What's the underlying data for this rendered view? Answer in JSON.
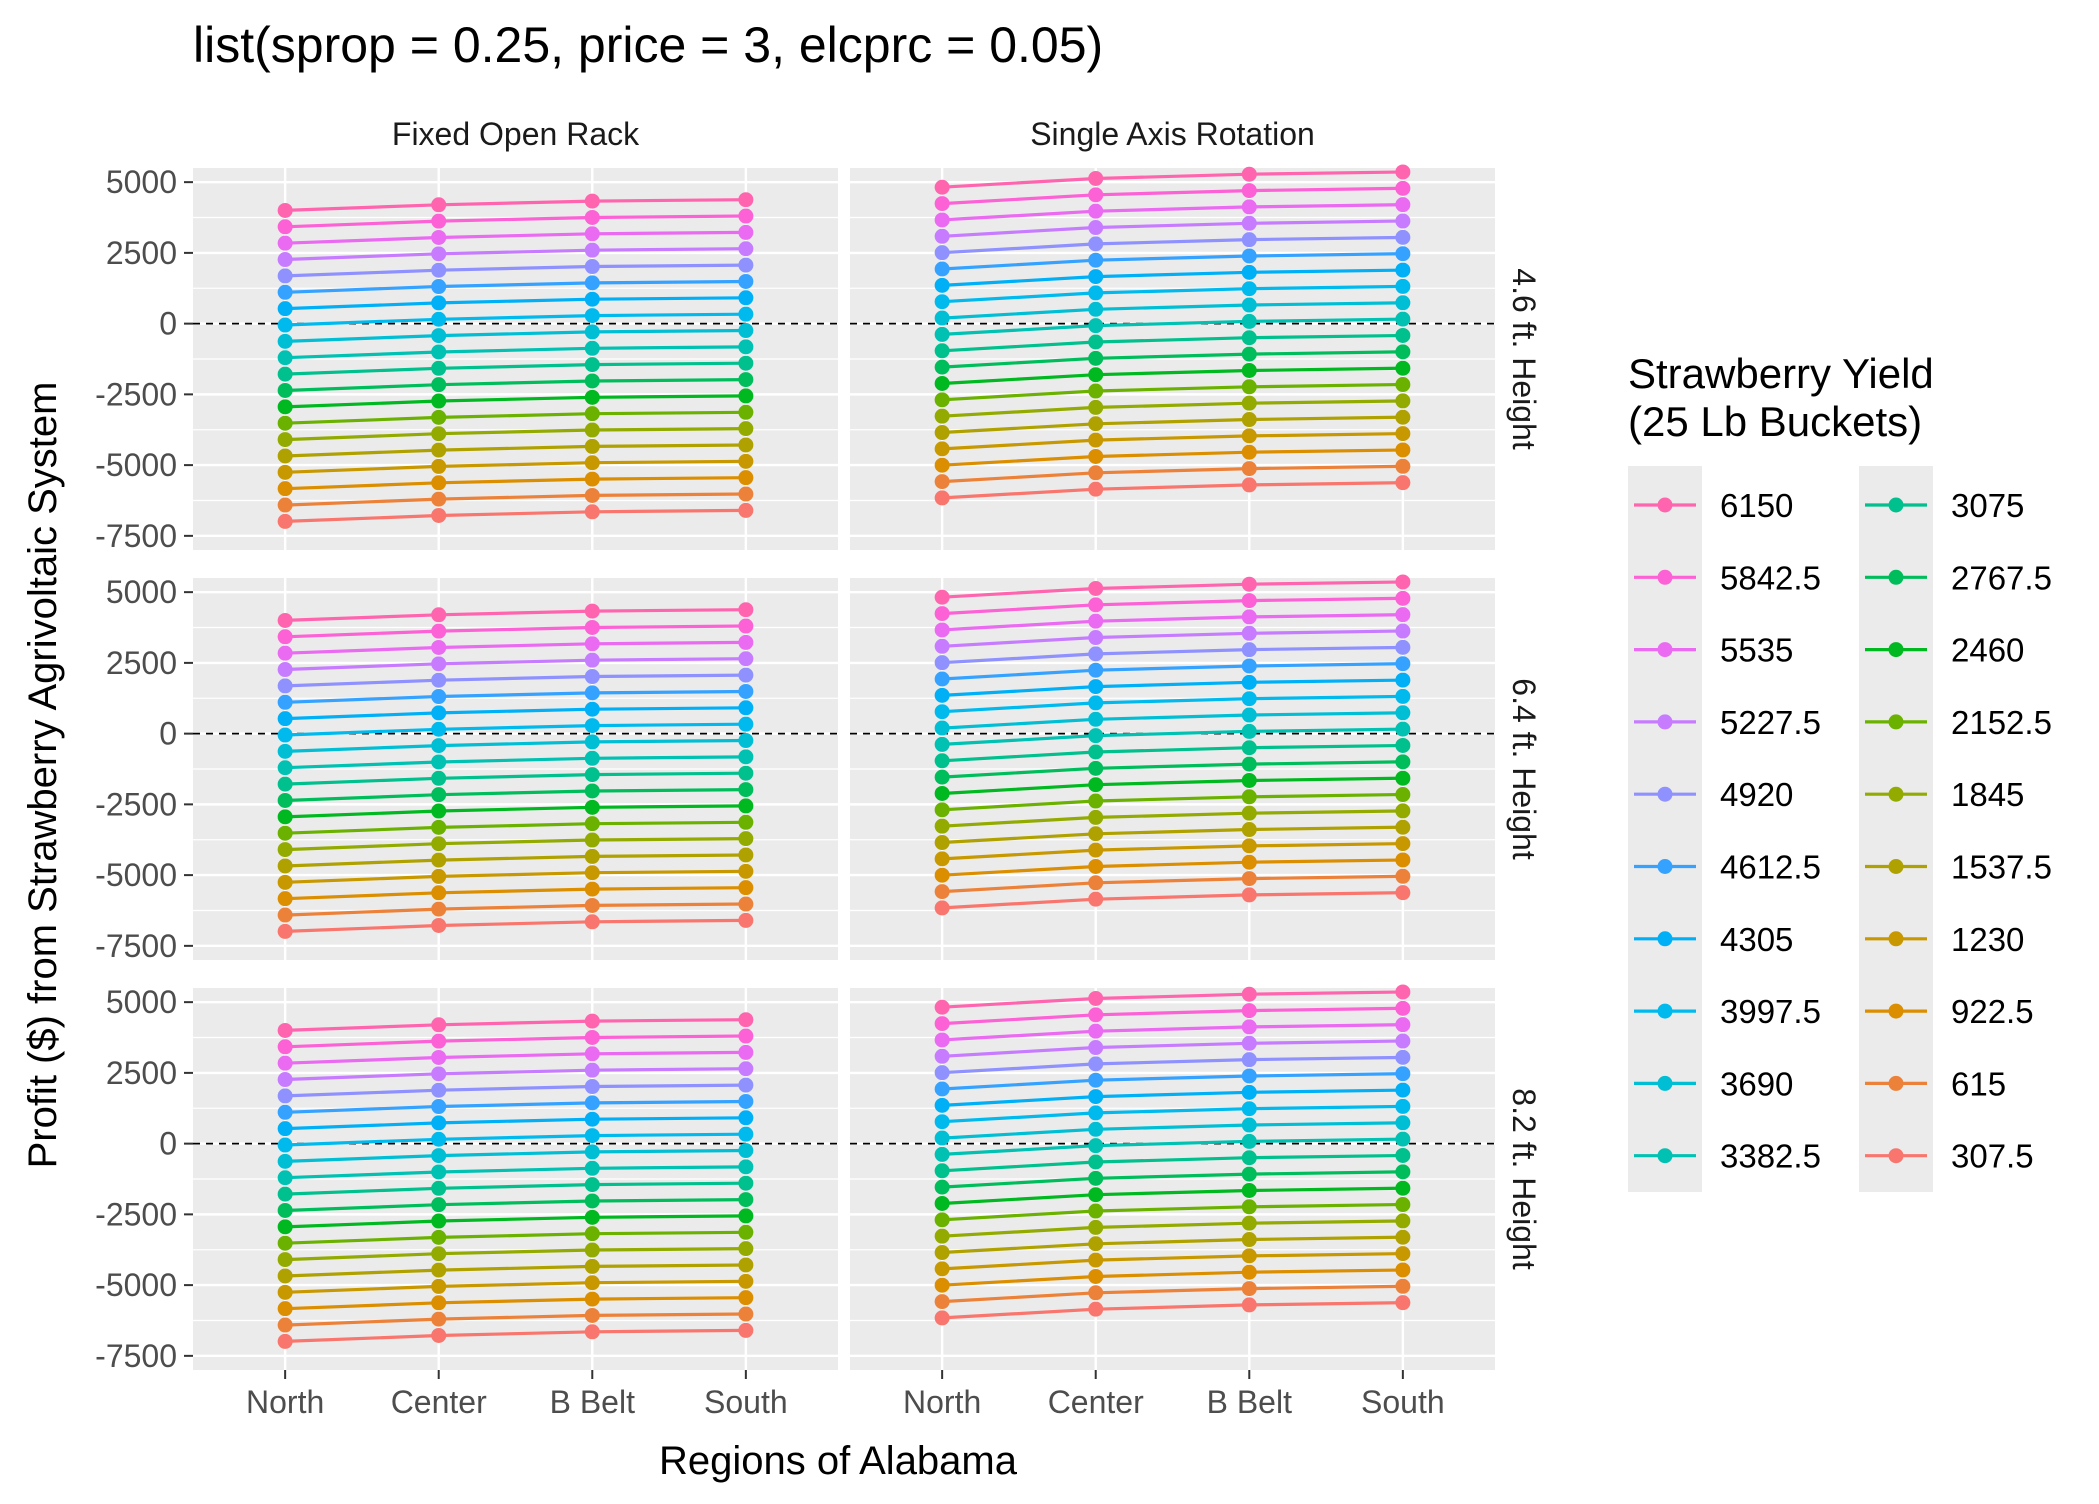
{
  "chart_data": {
    "type": "line",
    "title": "list(sprop = 0.25, price = 3, elcprc = 0.05)",
    "xlabel": "Regions of Alabama",
    "ylabel": "Profit ($) from Strawberry Agrivoltaic System",
    "categories": [
      "North",
      "Center",
      "B Belt",
      "South"
    ],
    "ylim": [
      -7500,
      5000
    ],
    "yticks": [
      -7500,
      -5000,
      -2500,
      0,
      2500,
      5000
    ],
    "ytick_labels": [
      "-7500",
      "-5000",
      "-2500",
      "0",
      "2500",
      "5000"
    ],
    "reference_line": {
      "y": 0,
      "style": "dashed"
    },
    "grid": true,
    "facet_columns": [
      "Fixed Open Rack",
      "Single Axis Rotation"
    ],
    "facet_rows": [
      "4.6 ft. Height",
      "6.4 ft. Height",
      "8.2 ft. Height"
    ],
    "legend": {
      "title": "Strawberry Yield\n (25 Lb Buckets)",
      "position": "right",
      "entries": [
        "6150",
        "5842.5",
        "5535",
        "5227.5",
        "4920",
        "4612.5",
        "4305",
        "3997.5",
        "3690",
        "3382.5",
        "3075",
        "2767.5",
        "2460",
        "2152.5",
        "1845",
        "1537.5",
        "1230",
        "922.5",
        "615",
        "307.5"
      ],
      "colors": [
        "#F8766D",
        "#EC8239",
        "#DB8E00",
        "#C79800",
        "#AFA100",
        "#93AA00",
        "#6BB100",
        "#00B81F",
        "#00BD5C",
        "#00C08D",
        "#00C1B2",
        "#00BFD4",
        "#00BAEE",
        "#00B0F6",
        "#35A2FF",
        "#8F91FF",
        "#C77CFF",
        "#EA6AF1",
        "#FC61D5",
        "#FF65AE"
      ]
    },
    "series": [
      {
        "panel": "Fixed Open Rack",
        "yield": "6150",
        "values": [
          4000,
          4200,
          4330,
          4380
        ]
      },
      {
        "panel": "Fixed Open Rack",
        "yield": "307.5",
        "values": [
          -6990,
          -6780,
          -6650,
          -6600
        ]
      },
      {
        "panel": "Single Axis Rotation",
        "yield": "6150",
        "values": [
          4820,
          5130,
          5280,
          5360
        ]
      },
      {
        "panel": "Single Axis Rotation",
        "yield": "307.5",
        "values": [
          -6160,
          -5850,
          -5700,
          -5620
        ]
      }
    ]
  }
}
